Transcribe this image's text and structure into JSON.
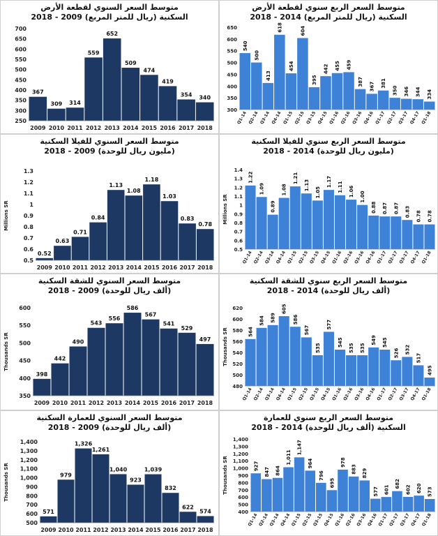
{
  "colors": {
    "dark": "#1d3963",
    "light": "#3d82d6"
  },
  "chart_data": [
    {
      "type": "bar",
      "color": "dark",
      "ylabel": "",
      "title1": "متوسط السعر السنوي لقطعة الأرض",
      "title2": "السكنية (ريال للمتر المربع) 2009 - 2018",
      "categories": [
        "2009",
        "2010",
        "2011",
        "2012",
        "2013",
        "2014",
        "2015",
        "2016",
        "2017",
        "2018"
      ],
      "values": [
        367,
        309,
        314,
        559,
        652,
        509,
        474,
        419,
        354,
        340
      ],
      "labels": [
        "367",
        "309",
        "314",
        "559",
        "652",
        "509",
        "474",
        "419",
        "354",
        "340"
      ],
      "ylim": [
        250,
        700
      ],
      "yticks": [
        250,
        300,
        350,
        400,
        450,
        500,
        550,
        600,
        650,
        700
      ],
      "yticklabels": [
        "250",
        "300",
        "350",
        "400",
        "450",
        "500",
        "550",
        "600",
        "650",
        "700"
      ],
      "rotate_x": false
    },
    {
      "type": "bar",
      "color": "light",
      "ylabel": "",
      "title1": "متوسط السعر الربع سنوي لقطعة الأرض",
      "title2": "السكنية (ريال للمتر المربع) 2014 - 2018",
      "categories": [
        "Q1-14",
        "Q2-14",
        "Q3-14",
        "Q4-14",
        "Q1-15",
        "Q2-15",
        "Q3-15",
        "Q4-15",
        "Q1-16",
        "Q2-16",
        "Q3-16",
        "Q4-16",
        "Q1-17",
        "Q2-17",
        "Q3-17",
        "Q4-17",
        "Q1-18"
      ],
      "values": [
        540,
        500,
        413,
        618,
        454,
        604,
        395,
        442,
        455,
        459,
        387,
        367,
        381,
        350,
        346,
        344,
        334
      ],
      "labels": [
        "540",
        "500",
        "413",
        "618",
        "454",
        "604",
        "395",
        "442",
        "455",
        "459",
        "387",
        "367",
        "381",
        "350",
        "346",
        "344",
        "334"
      ],
      "ylim": [
        300,
        650
      ],
      "yticks": [
        300,
        350,
        400,
        450,
        500,
        550,
        600,
        650
      ],
      "yticklabels": [
        "300",
        "350",
        "400",
        "450",
        "500",
        "550",
        "600",
        "650"
      ],
      "rotate_x": true
    },
    {
      "type": "bar",
      "color": "dark",
      "ylabel": "Millions SR",
      "title1": "متوسط السعر السنوي للفيلا السكنية",
      "title2": "(مليون ريال للوحدة) 2009 - 2018",
      "categories": [
        "2009",
        "2010",
        "2011",
        "2012",
        "2013",
        "2014",
        "2015",
        "2016",
        "2017",
        "2018"
      ],
      "values": [
        0.52,
        0.63,
        0.71,
        0.84,
        1.13,
        1.08,
        1.18,
        1.03,
        0.83,
        0.78
      ],
      "labels": [
        "0.52",
        "0.63",
        "0.71",
        "0.84",
        "1.13",
        "1.08",
        "1.18",
        "1.03",
        "0.83",
        "0.78"
      ],
      "ylim": [
        0.5,
        1.3
      ],
      "yticks": [
        0.5,
        0.6,
        0.7,
        0.8,
        0.9,
        1.0,
        1.1,
        1.2,
        1.3
      ],
      "yticklabels": [
        "0.5",
        "0.6",
        "0.7",
        "0.8",
        "0.9",
        "1",
        "1.1",
        "1.2",
        "1.3"
      ],
      "rotate_x": false
    },
    {
      "type": "bar",
      "color": "light",
      "ylabel": "Millions SR",
      "title1": "متوسط السعر الربع سنوي للفيلا السكنية",
      "title2": "(مليون ريال للوحدة) 2014 - 2018",
      "categories": [
        "Q1-14",
        "Q2-14",
        "Q3-14",
        "Q4-14",
        "Q1-15",
        "Q2-15",
        "Q3-15",
        "Q4-15",
        "Q1-16",
        "Q2-16",
        "Q3-16",
        "Q4-16",
        "Q1-17",
        "Q2-17",
        "Q3-17",
        "Q4-17",
        "Q1-18"
      ],
      "values": [
        1.22,
        1.09,
        0.89,
        1.08,
        1.21,
        1.13,
        1.05,
        1.17,
        1.11,
        1.06,
        1.0,
        0.88,
        0.87,
        0.87,
        0.83,
        0.78,
        0.78
      ],
      "labels": [
        "1.22",
        "1.09",
        "0.89",
        "1.08",
        "1.21",
        "1.13",
        "1.05",
        "1.17",
        "1.11",
        "1.06",
        "1.00",
        "0.88",
        "0.87",
        "0.87",
        "0.83",
        "0.78",
        "0.78"
      ],
      "ylim": [
        0.5,
        1.4
      ],
      "yticks": [
        0.5,
        0.6,
        0.7,
        0.8,
        0.9,
        1.0,
        1.1,
        1.2,
        1.3,
        1.4
      ],
      "yticklabels": [
        "0.5",
        "0.6",
        "0.7",
        "0.8",
        "0.9",
        "1",
        "1.1",
        "1.2",
        "1.3",
        "1.4"
      ],
      "rotate_x": true
    },
    {
      "type": "bar",
      "color": "dark",
      "ylabel": "Thousands SR",
      "title1": "متوسط السعر السنوي للشقة السكنية",
      "title2": "(ألف ريال للوحدة) 2009 - 2018",
      "categories": [
        "2009",
        "2010",
        "2011",
        "2012",
        "2013",
        "2014",
        "2015",
        "2016",
        "2017",
        "2018"
      ],
      "values": [
        398,
        442,
        490,
        543,
        556,
        586,
        567,
        541,
        529,
        497
      ],
      "labels": [
        "398",
        "442",
        "490",
        "543",
        "556",
        "586",
        "567",
        "541",
        "529",
        "497"
      ],
      "ylim": [
        350,
        600
      ],
      "yticks": [
        350,
        400,
        450,
        500,
        550,
        600
      ],
      "yticklabels": [
        "350",
        "400",
        "450",
        "500",
        "550",
        "600"
      ],
      "rotate_x": false
    },
    {
      "type": "bar",
      "color": "light",
      "ylabel": "Thousands SR",
      "title1": "متوسط السعر الربع سنوي للشقة السكنية",
      "title2": "(ألف ريال للوحدة) 2014 - 2018",
      "categories": [
        "Q1-14",
        "Q2-14",
        "Q3-14",
        "Q4-14",
        "Q1-15",
        "Q2-15",
        "Q3-15",
        "Q4-15",
        "Q1-16",
        "Q2-16",
        "Q3-16",
        "Q4-16",
        "Q1-17",
        "Q2-17",
        "Q3-17",
        "Q4-17",
        "Q1-18"
      ],
      "values": [
        564,
        584,
        589,
        605,
        586,
        567,
        535,
        577,
        545,
        535,
        535,
        549,
        545,
        526,
        532,
        517,
        495
      ],
      "labels": [
        "564",
        "584",
        "589",
        "605",
        "586",
        "567",
        "535",
        "577",
        "545",
        "535",
        "535",
        "549",
        "545",
        "526",
        "532",
        "517",
        "495"
      ],
      "ylim": [
        480,
        620
      ],
      "yticks": [
        480,
        500,
        520,
        540,
        560,
        580,
        600,
        620
      ],
      "yticklabels": [
        "480",
        "500",
        "520",
        "540",
        "560",
        "580",
        "600",
        "620"
      ],
      "rotate_x": true
    },
    {
      "type": "bar",
      "color": "dark",
      "ylabel": "Thousands SR",
      "title1": "متوسط السعر السنوي للعمارة السكنية",
      "title2": "(ألف ريال للوحدة) 2009 - 2018",
      "categories": [
        "2009",
        "2010",
        "2011",
        "2012",
        "2013",
        "2014",
        "2015",
        "2016",
        "2017",
        "2018"
      ],
      "values": [
        571,
        979,
        1326,
        1261,
        1040,
        923,
        1039,
        832,
        622,
        574
      ],
      "labels": [
        "571",
        "979",
        "1,326",
        "1,261",
        "1,040",
        "923",
        "1,039",
        "832",
        "622",
        "574"
      ],
      "ylim": [
        500,
        1400
      ],
      "yticks": [
        500,
        600,
        700,
        800,
        900,
        1000,
        1100,
        1200,
        1300,
        1400
      ],
      "yticklabels": [
        "500",
        "600",
        "700",
        "800",
        "900",
        "1,000",
        "1,100",
        "1,200",
        "1,300",
        "1,400"
      ],
      "rotate_x": false
    },
    {
      "type": "bar",
      "color": "light",
      "ylabel": "Thousands SR",
      "title1": "متوسط السعر الربع سنوي للعمارة",
      "title2": "السكنية (ألف ريال للوحدة) 2014 - 2018",
      "categories": [
        "Q1-14",
        "Q2-14",
        "Q3-14",
        "Q4-14",
        "Q1-15",
        "Q2-15",
        "Q3-15",
        "Q4-15",
        "Q1-16",
        "Q2-16",
        "Q3-16",
        "Q4-16",
        "Q1-17",
        "Q2-17",
        "Q3-17",
        "Q4-17",
        "Q1-18"
      ],
      "values": [
        927,
        847,
        864,
        1011,
        1147,
        964,
        796,
        695,
        978,
        883,
        829,
        577,
        601,
        682,
        602,
        620,
        573
      ],
      "labels": [
        "927",
        "847",
        "864",
        "1,011",
        "1,147",
        "964",
        "796",
        "695",
        "978",
        "883",
        "829",
        "577",
        "601",
        "682",
        "602",
        "620",
        "573"
      ],
      "ylim": [
        400,
        1400
      ],
      "yticks": [
        400,
        500,
        600,
        700,
        800,
        900,
        1000,
        1100,
        1200,
        1300,
        1400
      ],
      "yticklabels": [
        "400",
        "500",
        "600",
        "700",
        "800",
        "900",
        "1,000",
        "1,100",
        "1,200",
        "1,300",
        "1,400"
      ],
      "rotate_x": true
    }
  ]
}
